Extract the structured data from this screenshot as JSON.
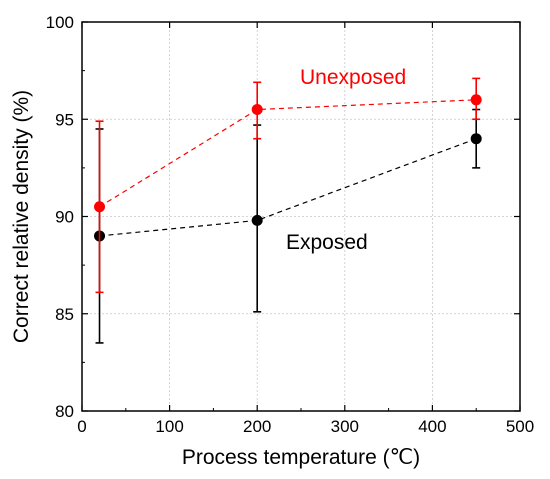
{
  "chart_data": {
    "type": "scatter",
    "xlabel": "Process temperature (℃)",
    "ylabel": "Correct relative density (%)",
    "xlim": [
      0,
      500
    ],
    "ylim": [
      80,
      100
    ],
    "xticks": [
      "0",
      "100",
      "200",
      "300",
      "400",
      "500"
    ],
    "yticks": [
      "80",
      "85",
      "90",
      "95",
      "100"
    ],
    "grid": true,
    "series": [
      {
        "name": "Unexposed",
        "color": "#ff0000",
        "line_style": "dashed",
        "points": [
          {
            "x": 20,
            "y": 90.5,
            "err_low": 86.1,
            "err_high": 94.9
          },
          {
            "x": 200,
            "y": 95.5,
            "err_low": 94.0,
            "err_high": 96.9
          },
          {
            "x": 450,
            "y": 96.0,
            "err_low": 95.0,
            "err_high": 97.1
          }
        ]
      },
      {
        "name": "Exposed",
        "color": "#000000",
        "line_style": "dashed",
        "points": [
          {
            "x": 20,
            "y": 89.0,
            "err_low": 83.5,
            "err_high": 94.5
          },
          {
            "x": 200,
            "y": 89.8,
            "err_low": 85.1,
            "err_high": 94.7
          },
          {
            "x": 450,
            "y": 94.0,
            "err_low": 92.5,
            "err_high": 95.5
          }
        ]
      }
    ]
  }
}
